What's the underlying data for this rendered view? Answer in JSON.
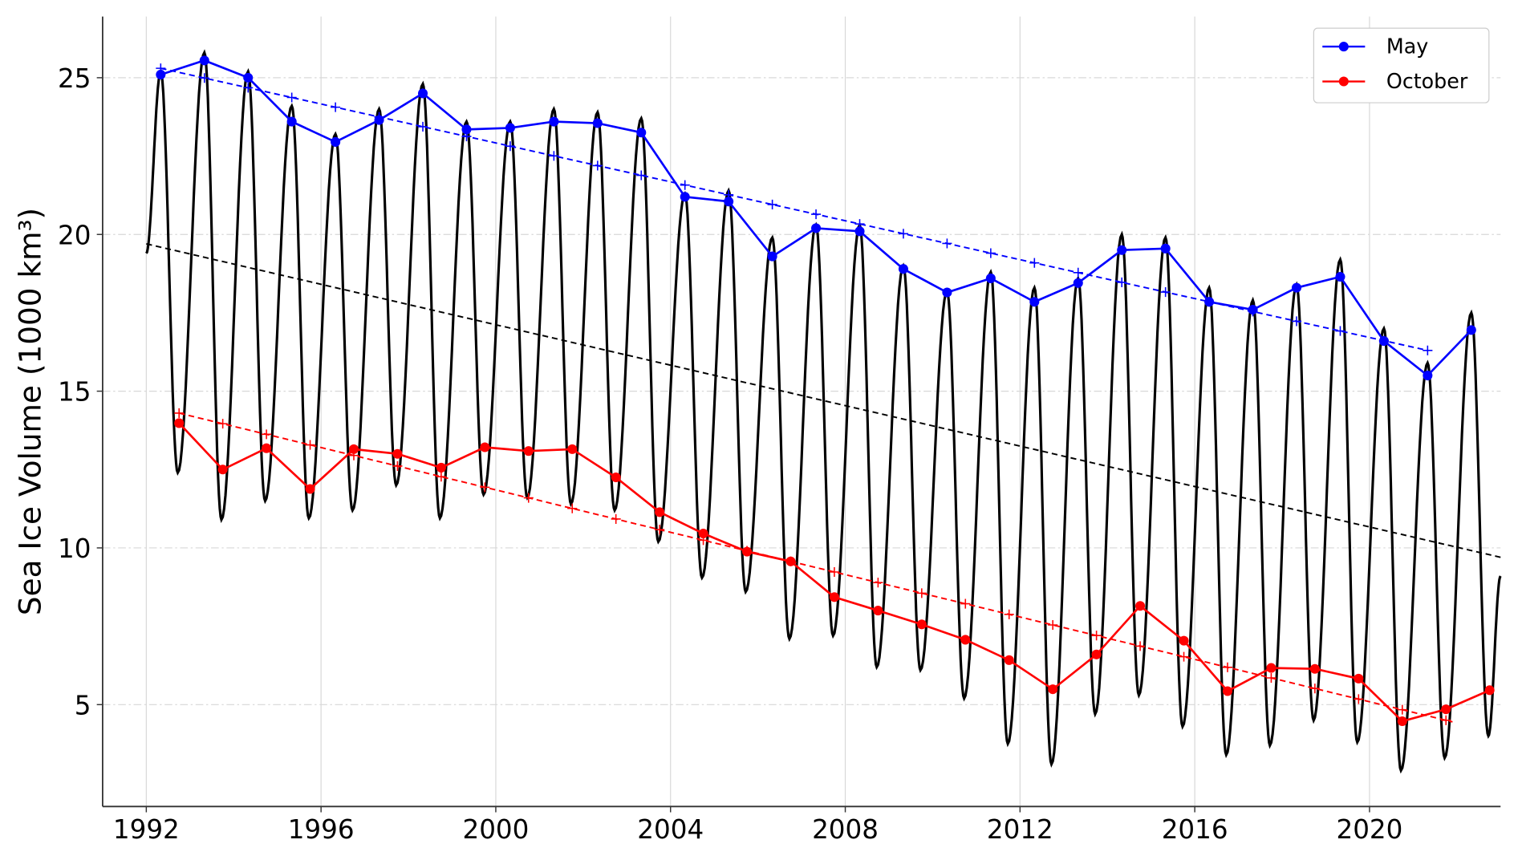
{
  "chart_data": {
    "type": "line",
    "title": "",
    "xlabel": "",
    "ylabel": "Sea Ice Volume (1000 km³)",
    "xlim": [
      1991,
      2023
    ],
    "ylim": [
      1.75,
      26.95
    ],
    "grid": true,
    "legend_placement": "top-right",
    "xticks": [
      1992,
      1996,
      2000,
      2004,
      2008,
      2012,
      2016,
      2020
    ],
    "xtick_labels": [
      "1992",
      "1996",
      "2000",
      "2004",
      "2008",
      "2012",
      "2016",
      "2020"
    ],
    "yticks": [
      5,
      10,
      15,
      20,
      25
    ],
    "ytick_labels": [
      "5",
      "10",
      "15",
      "20",
      "25"
    ],
    "series": [
      {
        "name": "May",
        "color": "#0000ff",
        "x_offset": 0.33,
        "years": [
          1992,
          1993,
          1994,
          1995,
          1996,
          1997,
          1998,
          1999,
          2000,
          2001,
          2002,
          2003,
          2004,
          2005,
          2006,
          2007,
          2008,
          2009,
          2010,
          2011,
          2012,
          2013,
          2014,
          2015,
          2016,
          2017,
          2018,
          2019,
          2020,
          2021,
          2022
        ],
        "values": [
          25.1,
          25.55,
          25.0,
          23.6,
          22.95,
          23.65,
          24.5,
          23.35,
          23.4,
          23.6,
          23.55,
          23.25,
          21.2,
          21.05,
          19.3,
          20.2,
          20.1,
          18.9,
          18.15,
          18.6,
          17.85,
          18.45,
          19.5,
          19.55,
          17.85,
          17.6,
          18.3,
          18.65,
          16.6,
          15.5,
          16.95
        ],
        "trend": {
          "x": [
            1992.33,
            2021.33
          ],
          "y": [
            25.3,
            16.3
          ]
        }
      },
      {
        "name": "October",
        "color": "#ff0000",
        "x_offset": 0.75,
        "years": [
          1992,
          1993,
          1994,
          1995,
          1996,
          1997,
          1998,
          1999,
          2000,
          2001,
          2002,
          2003,
          2004,
          2005,
          2006,
          2007,
          2008,
          2009,
          2010,
          2011,
          2012,
          2013,
          2014,
          2015,
          2016,
          2017,
          2018,
          2019,
          2020,
          2021,
          2022
        ],
        "values": [
          13.98,
          12.5,
          13.18,
          11.88,
          13.15,
          13.0,
          12.56,
          13.21,
          13.09,
          13.15,
          12.25,
          11.14,
          10.46,
          9.88,
          9.57,
          8.43,
          8.0,
          7.56,
          7.07,
          6.42,
          5.49,
          6.6,
          8.15,
          7.04,
          5.43,
          6.17,
          6.14,
          5.83,
          4.47,
          4.85,
          5.46
        ],
        "trend": {
          "x": [
            1992.75,
            2021.9
          ],
          "y": [
            14.3,
            4.45
          ]
        }
      }
    ],
    "daily_volume": {
      "color": "#000000",
      "start": [
        1992.0,
        19.4
      ],
      "end": [
        2023.0,
        9.1
      ],
      "peak_offset": 0.33,
      "min_offset": 0.72,
      "annual_max": [
        25.2,
        25.8,
        25.2,
        24.1,
        23.2,
        24.0,
        24.8,
        23.6,
        23.6,
        24.0,
        23.9,
        23.7,
        21.3,
        21.4,
        19.9,
        20.3,
        20.3,
        19.0,
        18.2,
        18.8,
        18.3,
        18.6,
        20.0,
        19.9,
        18.3,
        17.9,
        18.4,
        19.2,
        17.0,
        15.9,
        17.5
      ],
      "annual_min": [
        12.4,
        10.9,
        11.5,
        10.95,
        11.2,
        12.0,
        10.95,
        11.7,
        11.6,
        11.4,
        11.2,
        10.2,
        9.05,
        8.6,
        7.1,
        7.2,
        6.2,
        6.1,
        5.2,
        3.75,
        3.1,
        4.7,
        5.3,
        4.3,
        3.4,
        3.7,
        4.5,
        3.8,
        2.9,
        3.3,
        4.0
      ],
      "trend": {
        "x": [
          1992.0,
          2023.0
        ],
        "y": [
          19.7,
          9.7
        ]
      }
    }
  }
}
